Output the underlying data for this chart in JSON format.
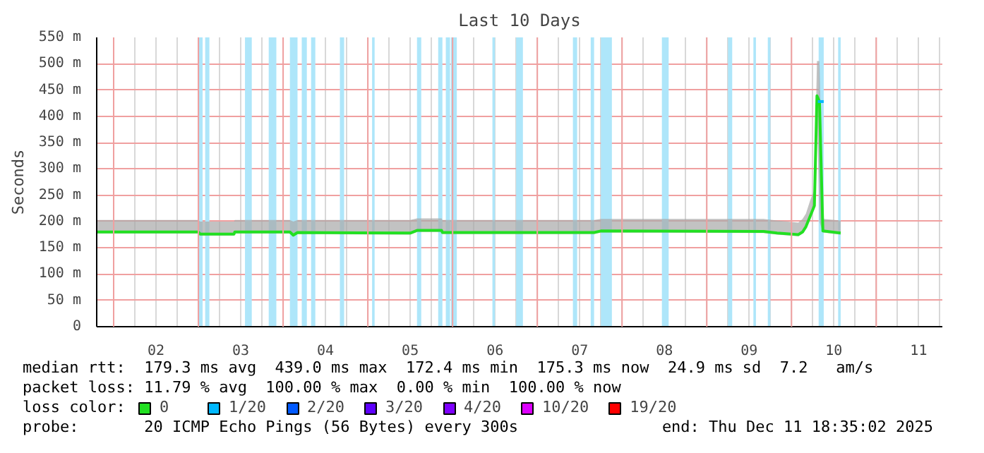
{
  "chart_data": {
    "type": "line",
    "title": "Last 10 Days",
    "ylabel": "Seconds",
    "legend_title": "loss color:",
    "xlim": [
      1.8,
      11.78
    ],
    "xticks": [
      {
        "value": 2.5,
        "label": "02"
      },
      {
        "value": 3.5,
        "label": "03"
      },
      {
        "value": 4.5,
        "label": "04"
      },
      {
        "value": 5.5,
        "label": "05"
      },
      {
        "value": 6.5,
        "label": "06"
      },
      {
        "value": 7.5,
        "label": "07"
      },
      {
        "value": 8.5,
        "label": "08"
      },
      {
        "value": 9.5,
        "label": "09"
      },
      {
        "value": 10.5,
        "label": "10"
      },
      {
        "value": 11.5,
        "label": "11"
      }
    ],
    "ylim": [
      0,
      550
    ],
    "yticks": [
      {
        "value": 0,
        "label": "0"
      },
      {
        "value": 50,
        "label": "50 m"
      },
      {
        "value": 100,
        "label": "100 m"
      },
      {
        "value": 150,
        "label": "150 m"
      },
      {
        "value": 200,
        "label": "200 m"
      },
      {
        "value": 250,
        "label": "250 m"
      },
      {
        "value": 300,
        "label": "300 m"
      },
      {
        "value": 350,
        "label": "350 m"
      },
      {
        "value": 400,
        "label": "400 m"
      },
      {
        "value": 450,
        "label": "450 m"
      },
      {
        "value": 500,
        "label": "500 m"
      },
      {
        "value": 550,
        "label": "550 m"
      }
    ],
    "grid": true,
    "legend": "bottom",
    "line_style": "solid",
    "series": [
      {
        "name": "0",
        "color": "#22e022",
        "x": [
          1.8,
          3.0,
          3.02,
          3.42,
          3.43,
          4.08,
          4.12,
          4.17,
          5.5,
          5.58,
          5.87,
          5.88,
          7.67,
          7.75,
          9.67,
          9.83,
          10.08,
          10.13,
          10.17,
          10.22,
          10.27,
          10.3,
          10.33,
          10.37,
          10.58
        ],
        "values": [
          180,
          180,
          176,
          176,
          180,
          180,
          174,
          179,
          178,
          183,
          183,
          179,
          179,
          182,
          181,
          178,
          175,
          180,
          190,
          210,
          230,
          439,
          428,
          182,
          178
        ],
        "lower": [
          177,
          177,
          173,
          173,
          177,
          177,
          171,
          176,
          175,
          180,
          180,
          176,
          176,
          179,
          178,
          175,
          172,
          177,
          187,
          205,
          225,
          420,
          200,
          179,
          175
        ],
        "upper": [
          203,
          203,
          200,
          200,
          203,
          203,
          200,
          203,
          203,
          206,
          206,
          203,
          203,
          205,
          205,
          202,
          198,
          205,
          215,
          240,
          260,
          505,
          505,
          205,
          202
        ]
      },
      {
        "name": "1/20",
        "color": "#00b8ff",
        "x": [
          10.31,
          10.38
        ],
        "values": [
          428,
          428
        ]
      },
      {
        "name": "2/20",
        "color": "#0059ff"
      },
      {
        "name": "3/20",
        "color": "#5e00ff"
      },
      {
        "name": "4/20",
        "color": "#7e00ff"
      },
      {
        "name": "10/20",
        "color": "#dd00ff"
      },
      {
        "name": "19/20",
        "color": "#ff0000"
      }
    ],
    "bands": [
      {
        "axis": "x",
        "from": 3.0,
        "to": 3.05,
        "color": "#aee6fa"
      },
      {
        "axis": "x",
        "from": 3.08,
        "to": 3.13,
        "color": "#aee6fa"
      },
      {
        "axis": "x",
        "from": 3.55,
        "to": 3.63,
        "color": "#aee6fa"
      },
      {
        "axis": "x",
        "from": 3.83,
        "to": 3.92,
        "color": "#aee6fa"
      },
      {
        "axis": "x",
        "from": 4.08,
        "to": 4.17,
        "color": "#aee6fa"
      },
      {
        "axis": "x",
        "from": 4.22,
        "to": 4.28,
        "color": "#aee6fa"
      },
      {
        "axis": "x",
        "from": 4.33,
        "to": 4.38,
        "color": "#aee6fa"
      },
      {
        "axis": "x",
        "from": 4.67,
        "to": 4.72,
        "color": "#aee6fa"
      },
      {
        "axis": "x",
        "from": 5.05,
        "to": 5.08,
        "color": "#aee6fa"
      },
      {
        "axis": "x",
        "from": 5.58,
        "to": 5.63,
        "color": "#aee6fa"
      },
      {
        "axis": "x",
        "from": 5.83,
        "to": 5.88,
        "color": "#aee6fa"
      },
      {
        "axis": "x",
        "from": 5.92,
        "to": 5.97,
        "color": "#aee6fa"
      },
      {
        "axis": "x",
        "from": 5.98,
        "to": 6.05,
        "color": "#aee6fa"
      },
      {
        "axis": "x",
        "from": 6.47,
        "to": 6.5,
        "color": "#aee6fa"
      },
      {
        "axis": "x",
        "from": 6.75,
        "to": 6.83,
        "color": "#aee6fa"
      },
      {
        "axis": "x",
        "from": 7.42,
        "to": 7.47,
        "color": "#aee6fa"
      },
      {
        "axis": "x",
        "from": 7.63,
        "to": 7.67,
        "color": "#aee6fa"
      },
      {
        "axis": "x",
        "from": 7.75,
        "to": 7.88,
        "color": "#aee6fa"
      },
      {
        "axis": "x",
        "from": 8.47,
        "to": 8.55,
        "color": "#aee6fa"
      },
      {
        "axis": "x",
        "from": 9.25,
        "to": 9.3,
        "color": "#aee6fa"
      },
      {
        "axis": "x",
        "from": 9.55,
        "to": 9.58,
        "color": "#aee6fa"
      },
      {
        "axis": "x",
        "from": 9.72,
        "to": 9.75,
        "color": "#aee6fa"
      },
      {
        "axis": "x",
        "from": 10.32,
        "to": 10.38,
        "color": "#aee6fa"
      },
      {
        "axis": "x",
        "from": 10.55,
        "to": 10.58,
        "color": "#aee6fa"
      }
    ],
    "annotations": [
      "median rtt:  179.3 ms avg  439.0 ms max  172.4 ms min  175.3 ms now  24.9 ms sd  7.2   am/s",
      "packet loss: 11.79 % avg  100.00 % max  0.00 % min  100.00 % now",
      "probe:       20 ICMP Echo Pings (56 Bytes) every 300s",
      "end: Thu Dec 11 18:35:02 2025"
    ]
  }
}
